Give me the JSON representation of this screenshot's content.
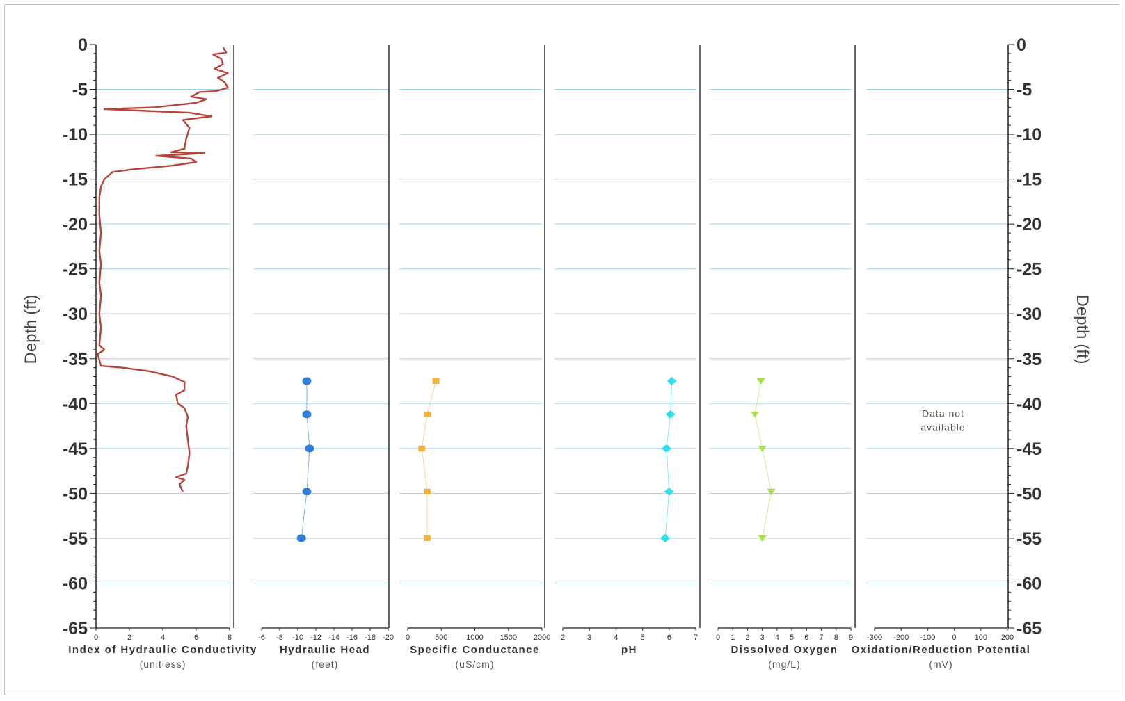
{
  "chart_data": {
    "type": "line",
    "y_axis": {
      "label_left": "Depth (ft)",
      "label_right": "Depth (ft)",
      "ylim": [
        -65,
        0
      ],
      "ticks": [
        "0",
        "-5",
        "-10",
        "-15",
        "-20",
        "-25",
        "-30",
        "-35",
        "-40",
        "-45",
        "-50",
        "-55",
        "-60",
        "-65"
      ],
      "gridlines": true
    },
    "panels": [
      {
        "title": "Index of Hydraulic Conductivity",
        "unit": "(unitless)",
        "xlim": [
          0,
          8
        ],
        "xticks": [
          "0",
          "2",
          "4",
          "6",
          "8"
        ],
        "color": "#b8443a",
        "kind": "trace",
        "points": [
          [
            7.6,
            -0.3
          ],
          [
            7.8,
            -0.9
          ],
          [
            7.0,
            -1.1
          ],
          [
            7.5,
            -1.6
          ],
          [
            7.6,
            -2.2
          ],
          [
            7.1,
            -2.7
          ],
          [
            7.9,
            -3.2
          ],
          [
            7.3,
            -3.7
          ],
          [
            7.7,
            -4.2
          ],
          [
            7.9,
            -4.8
          ],
          [
            7.2,
            -5.2
          ],
          [
            6.2,
            -5.3
          ],
          [
            5.7,
            -5.8
          ],
          [
            6.6,
            -6.1
          ],
          [
            6.0,
            -6.5
          ],
          [
            3.5,
            -7.0
          ],
          [
            0.5,
            -7.2
          ],
          [
            3.0,
            -7.4
          ],
          [
            5.6,
            -7.6
          ],
          [
            6.9,
            -8.0
          ],
          [
            5.2,
            -8.4
          ],
          [
            5.6,
            -9.3
          ],
          [
            5.4,
            -10.5
          ],
          [
            5.3,
            -11.6
          ],
          [
            4.5,
            -12.0
          ],
          [
            6.5,
            -12.1
          ],
          [
            3.6,
            -12.4
          ],
          [
            5.7,
            -12.7
          ],
          [
            6.0,
            -13.1
          ],
          [
            4.5,
            -13.5
          ],
          [
            2.2,
            -13.9
          ],
          [
            1.0,
            -14.2
          ],
          [
            0.5,
            -15.0
          ],
          [
            0.3,
            -15.8
          ],
          [
            0.2,
            -17.0
          ],
          [
            0.2,
            -19.0
          ],
          [
            0.3,
            -21.0
          ],
          [
            0.2,
            -23.0
          ],
          [
            0.3,
            -24.5
          ],
          [
            0.2,
            -26.5
          ],
          [
            0.3,
            -28.0
          ],
          [
            0.2,
            -30.0
          ],
          [
            0.3,
            -31.5
          ],
          [
            0.2,
            -33.5
          ],
          [
            0.5,
            -34.0
          ],
          [
            0.1,
            -34.5
          ],
          [
            0.3,
            -35.8
          ],
          [
            1.6,
            -36.0
          ],
          [
            3.2,
            -36.4
          ],
          [
            4.6,
            -37.0
          ],
          [
            5.3,
            -37.6
          ],
          [
            5.3,
            -38.5
          ],
          [
            4.8,
            -39.0
          ],
          [
            4.9,
            -40.0
          ],
          [
            5.3,
            -40.5
          ],
          [
            5.5,
            -41.5
          ],
          [
            5.4,
            -42.5
          ],
          [
            5.5,
            -44.0
          ],
          [
            5.6,
            -45.5
          ],
          [
            5.5,
            -47.0
          ],
          [
            5.4,
            -47.8
          ],
          [
            4.8,
            -48.2
          ],
          [
            5.3,
            -48.5
          ],
          [
            5.0,
            -49.0
          ],
          [
            5.2,
            -49.8
          ]
        ]
      },
      {
        "title": "Hydraulic Head",
        "unit": "(feet)",
        "xlim": [
          -6,
          -20
        ],
        "xticks": [
          "-6",
          "-8",
          "-10",
          "-12",
          "-14",
          "-16",
          "-18",
          "-20"
        ],
        "color": "#2f7fd8",
        "kind": "markers",
        "marker": "circle",
        "points": [
          [
            -11.0,
            -37.5
          ],
          [
            -11.0,
            -41.2
          ],
          [
            -11.3,
            -45.0
          ],
          [
            -11.0,
            -49.8
          ],
          [
            -10.4,
            -55.0
          ]
        ]
      },
      {
        "title": "Specific Conductance",
        "unit": "(uS/cm)",
        "xlim": [
          0,
          2000
        ],
        "xticks": [
          "0",
          "500",
          "1000",
          "1500",
          "2000"
        ],
        "color": "#f2b23a",
        "kind": "markers",
        "marker": "square",
        "points": [
          [
            420,
            -37.5
          ],
          [
            290,
            -41.2
          ],
          [
            210,
            -45.0
          ],
          [
            290,
            -49.8
          ],
          [
            290,
            -55.0
          ]
        ]
      },
      {
        "title": "pH",
        "unit": "",
        "xlim": [
          2,
          7
        ],
        "xticks": [
          "2",
          "3",
          "4",
          "5",
          "6",
          "7"
        ],
        "color": "#2ee0ee",
        "kind": "markers",
        "marker": "diamond",
        "points": [
          [
            6.1,
            -37.5
          ],
          [
            6.05,
            -41.2
          ],
          [
            5.9,
            -45.0
          ],
          [
            6.0,
            -49.8
          ],
          [
            5.85,
            -55.0
          ]
        ]
      },
      {
        "title": "Dissolved Oxygen",
        "unit": "(mg/L)",
        "xlim": [
          0,
          9
        ],
        "xticks": [
          "0",
          "1",
          "2",
          "3",
          "4",
          "5",
          "6",
          "7",
          "8",
          "9"
        ],
        "color": "#a7e04a",
        "kind": "markers",
        "marker": "triangle",
        "points": [
          [
            2.9,
            -37.5
          ],
          [
            2.5,
            -41.2
          ],
          [
            3.0,
            -45.0
          ],
          [
            3.6,
            -49.8
          ],
          [
            3.0,
            -55.0
          ]
        ]
      },
      {
        "title": "Oxidation/Reduction Potential",
        "unit": "(mV)",
        "xlim": [
          -300,
          200
        ],
        "xticks": [
          "-300",
          "-200",
          "-100",
          "0",
          "100",
          "200"
        ],
        "color": "#888888",
        "kind": "none",
        "points": [],
        "note": [
          "Data not",
          "available"
        ]
      }
    ]
  }
}
